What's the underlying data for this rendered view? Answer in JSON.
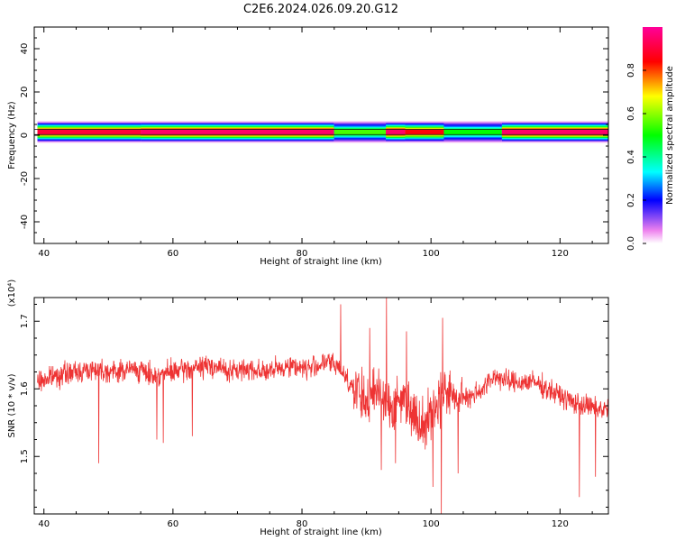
{
  "title": "C2E6.2024.026.09.20.G12",
  "chart_data": [
    {
      "type": "heatmap",
      "title": "C2E6.2024.026.09.20.G12",
      "xlabel": "Height of straight line (km)",
      "ylabel": "Frequency (Hz)",
      "xlim": [
        38.5,
        127.5
      ],
      "ylim": [
        -50,
        50
      ],
      "x_ticks": [
        40,
        60,
        80,
        100,
        120
      ],
      "y_ticks": [
        40,
        20,
        0,
        -20,
        -40
      ],
      "colorbar": {
        "label": "Normalized spectral amplitude",
        "range": [
          0,
          1
        ],
        "ticks": [
          "0.0",
          "0.2",
          "0.4",
          "0.6",
          "0.8"
        ],
        "tick_values": [
          0.0,
          0.2,
          0.4,
          0.6,
          0.8
        ],
        "colormap": [
          "#ffffff",
          "#ee82ee",
          "#0000ff",
          "#00ffff",
          "#00ff00",
          "#ffff00",
          "#ff0000",
          "#ff0099"
        ]
      },
      "band": {
        "center_hz": 1.5,
        "core_halfwidth_hz": 1.2,
        "outer_halfwidth_hz": 5,
        "segments": [
          {
            "x": [
              39,
              55
            ],
            "peak": 0.9
          },
          {
            "x": [
              55,
              85
            ],
            "peak": 0.95
          },
          {
            "x": [
              85,
              93
            ],
            "peak": 0.55
          },
          {
            "x": [
              93,
              96
            ],
            "peak": 0.95
          },
          {
            "x": [
              96,
              102
            ],
            "peak": 0.85
          },
          {
            "x": [
              102,
              111
            ],
            "peak": 0.5
          },
          {
            "x": [
              111,
              127.5
            ],
            "peak": 0.95
          }
        ]
      }
    },
    {
      "type": "line",
      "xlabel": "Height of straight line (km)",
      "ylabel": "SNR (10 * v/v)",
      "multiplier": "(x10⁴)",
      "xlim": [
        38.5,
        127.5
      ],
      "ylim": [
        1.415,
        1.735
      ],
      "x_ticks": [
        40,
        60,
        80,
        100,
        120
      ],
      "y_ticks": [
        "1.5",
        "1.6",
        "1.7"
      ],
      "y_tick_values": [
        1.5,
        1.6,
        1.7
      ],
      "color": "#ee3333",
      "x": [
        39,
        42,
        45,
        48,
        51,
        54,
        57,
        60,
        63,
        66,
        69,
        72,
        75,
        78,
        81,
        84,
        86,
        88,
        90,
        92,
        94,
        96,
        98,
        100,
        102,
        104,
        106,
        108,
        110,
        112,
        114,
        116,
        118,
        120,
        122,
        124,
        126,
        127.5
      ],
      "y": [
        1.61,
        1.62,
        1.625,
        1.63,
        1.625,
        1.63,
        1.62,
        1.625,
        1.63,
        1.635,
        1.625,
        1.63,
        1.625,
        1.635,
        1.63,
        1.64,
        1.63,
        1.6,
        1.58,
        1.6,
        1.57,
        1.59,
        1.55,
        1.56,
        1.6,
        1.585,
        1.59,
        1.6,
        1.62,
        1.61,
        1.61,
        1.61,
        1.6,
        1.59,
        1.58,
        1.575,
        1.57,
        1.57
      ],
      "spikes": [
        {
          "x": 48.5,
          "y": 1.49
        },
        {
          "x": 57.5,
          "y": 1.525
        },
        {
          "x": 58.5,
          "y": 1.52
        },
        {
          "x": 63,
          "y": 1.53
        },
        {
          "x": 86,
          "y": 1.725
        },
        {
          "x": 90.5,
          "y": 1.69
        },
        {
          "x": 92.3,
          "y": 1.48
        },
        {
          "x": 93.1,
          "y": 1.735
        },
        {
          "x": 94.5,
          "y": 1.49
        },
        {
          "x": 96.2,
          "y": 1.685
        },
        {
          "x": 100.3,
          "y": 1.455
        },
        {
          "x": 101.6,
          "y": 1.415
        },
        {
          "x": 101.8,
          "y": 1.705
        },
        {
          "x": 104.2,
          "y": 1.475
        },
        {
          "x": 123,
          "y": 1.44
        },
        {
          "x": 125.5,
          "y": 1.47
        }
      ]
    }
  ]
}
